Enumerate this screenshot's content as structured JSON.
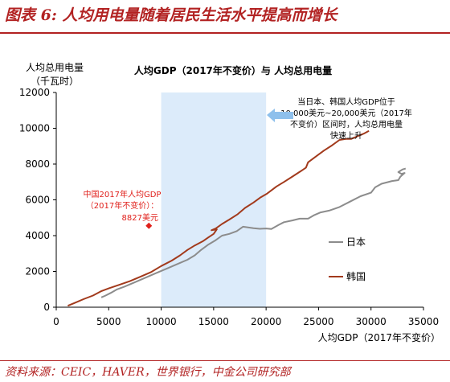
{
  "header": {
    "figure_title": "图表 6: 人均用电量随着居民生活水平提高而增长"
  },
  "footer": {
    "source": "资料来源：CEIC，HAVER，世界银行，中金公司研究部"
  },
  "colors": {
    "accent": "#b22222",
    "japan": "#8c8c8c",
    "korea": "#a23a1c",
    "highlight_band": "#dcebfa",
    "arrow": "#8ec0ec",
    "china_marker": "#e0201b"
  },
  "chart_data": {
    "type": "line",
    "title": "人均GDP（2017年不变价）与 人均总用电量",
    "ylabel_line1": "人均总用电量",
    "ylabel_line2": "（千瓦时）",
    "xlabel": "人均GDP（2017年不变价）",
    "xlim": [
      0,
      35000
    ],
    "ylim": [
      0,
      12000
    ],
    "xticks": [
      0,
      5000,
      10000,
      15000,
      20000,
      25000,
      30000,
      35000
    ],
    "yticks": [
      0,
      2000,
      4000,
      6000,
      8000,
      10000,
      12000
    ],
    "grid": false,
    "legend_position": "right",
    "highlight_range": [
      10000,
      20000
    ],
    "annotations": {
      "korea_note": [
        "当日本、韩国人均GDP位于",
        "10,000美元~20,000美元（2017年",
        "不变价）区间时，人均总用电量",
        "快速上升"
      ],
      "china_note": [
        "中国2017年人均GDP",
        "（2017年不变价）：",
        "8827美元"
      ]
    },
    "china_point": {
      "x": 8827,
      "y": 4550
    },
    "series": [
      {
        "name": "日本",
        "x": [
          4300,
          4700,
          5200,
          5800,
          6500,
          7500,
          8500,
          9500,
          10500,
          11500,
          12500,
          13200,
          13800,
          14500,
          15200,
          15800,
          16500,
          17200,
          17800,
          18400,
          18800,
          19400,
          20000,
          20500,
          21200,
          21700,
          22500,
          23200,
          24000,
          24600,
          25200,
          26000,
          27000,
          28000,
          29000,
          30000,
          30400,
          31000,
          32000,
          32600,
          32800,
          33200,
          32900,
          32600,
          33000,
          33300
        ],
        "y": [
          550,
          650,
          800,
          1000,
          1150,
          1400,
          1650,
          1900,
          2150,
          2400,
          2650,
          2900,
          3200,
          3500,
          3750,
          4000,
          4100,
          4250,
          4500,
          4450,
          4420,
          4380,
          4400,
          4370,
          4600,
          4750,
          4850,
          4950,
          4950,
          5150,
          5300,
          5400,
          5600,
          5900,
          6200,
          6400,
          6700,
          6900,
          7050,
          7100,
          7300,
          7500,
          7450,
          7550,
          7700,
          7750
        ]
      },
      {
        "name": "韩国",
        "x": [
          1100,
          1800,
          2600,
          3500,
          4300,
          4300,
          5000,
          6000,
          7000,
          8000,
          9000,
          10000,
          11000,
          11800,
          12500,
          13200,
          14000,
          14500,
          15000,
          15300,
          14800,
          15200,
          15800,
          16500,
          17300,
          18000,
          18800,
          19500,
          20100,
          21000,
          21700,
          22500,
          23300,
          23800,
          24000,
          24700,
          25500,
          26300,
          27000,
          27600,
          28100,
          28300,
          28700,
          29300,
          29800
        ],
        "y": [
          80,
          250,
          450,
          650,
          900,
          900,
          1050,
          1250,
          1450,
          1700,
          1950,
          2300,
          2600,
          2900,
          3200,
          3450,
          3700,
          3900,
          4100,
          4350,
          4300,
          4400,
          4650,
          4900,
          5200,
          5550,
          5850,
          6150,
          6350,
          6750,
          7000,
          7300,
          7600,
          7800,
          8100,
          8400,
          8750,
          9050,
          9350,
          9400,
          9400,
          9450,
          9550,
          9700,
          9850
        ]
      }
    ]
  }
}
